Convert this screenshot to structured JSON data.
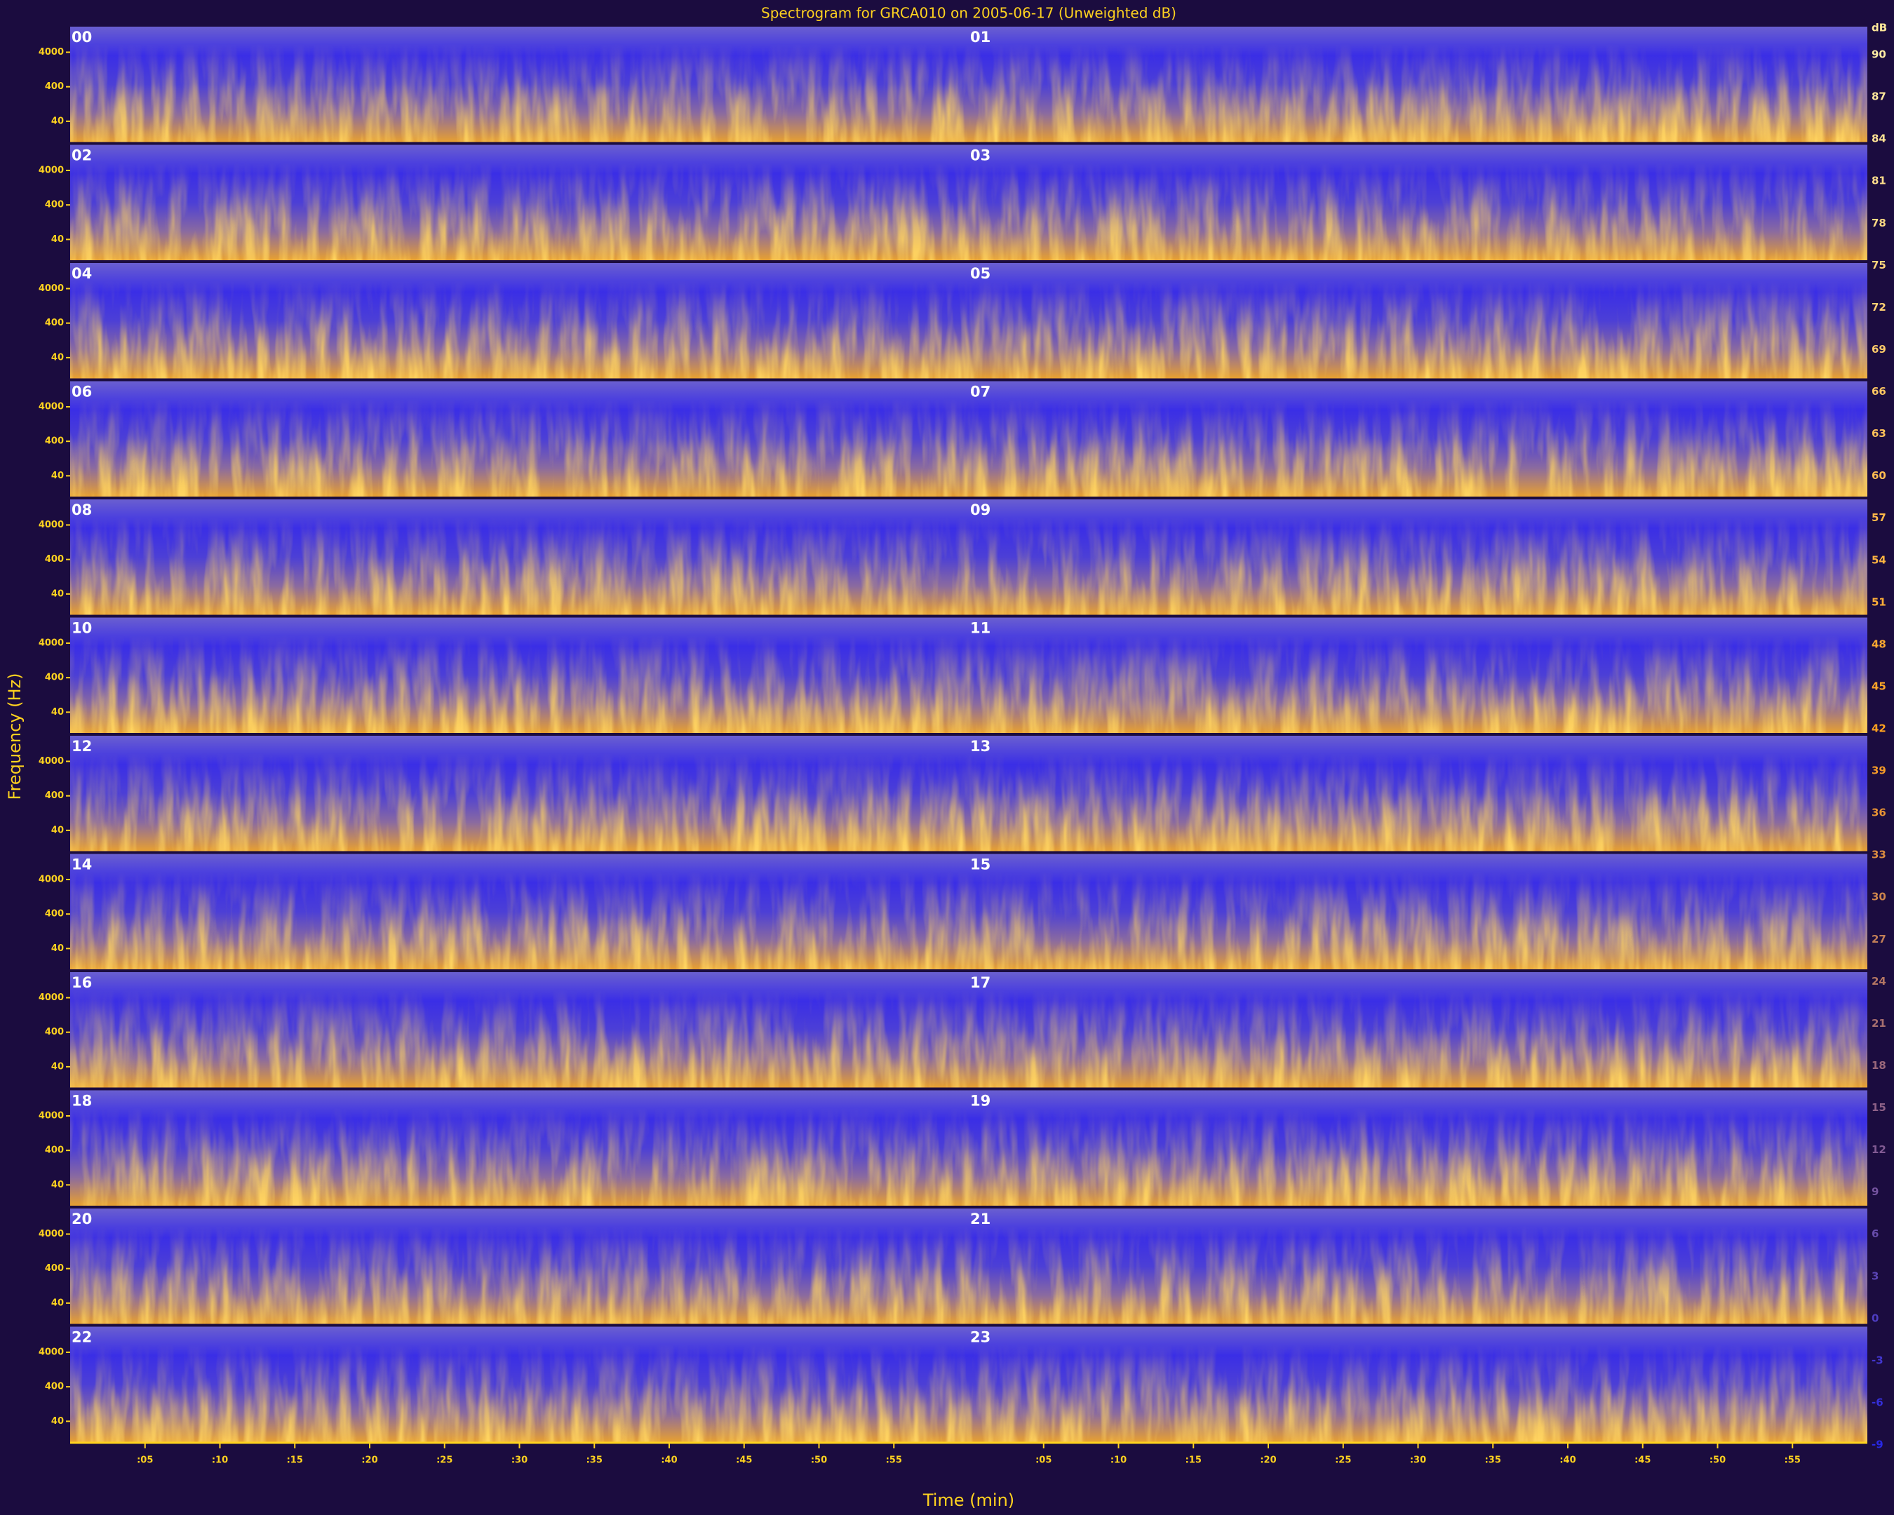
{
  "chart_data": {
    "type": "spectrogram",
    "title": "Spectrogram for GRCA010 on 2005-06-17 (Unweighted dB)",
    "xlabel": "Time (min)",
    "ylabel": "Frequency (Hz)",
    "panels": [
      "00",
      "01",
      "02",
      "03",
      "04",
      "05",
      "06",
      "07",
      "08",
      "09",
      "10",
      "11",
      "12",
      "13",
      "14",
      "15",
      "16",
      "17",
      "18",
      "19",
      "20",
      "21",
      "22",
      "23"
    ],
    "xlim": [
      0,
      60
    ],
    "xticks": [
      {
        "value": 5,
        "label": ":05"
      },
      {
        "value": 10,
        "label": ":10"
      },
      {
        "value": 15,
        "label": ":15"
      },
      {
        "value": 20,
        "label": ":20"
      },
      {
        "value": 25,
        "label": ":25"
      },
      {
        "value": 30,
        "label": ":30"
      },
      {
        "value": 35,
        "label": ":35"
      },
      {
        "value": 40,
        "label": ":40"
      },
      {
        "value": 45,
        "label": ":45"
      },
      {
        "value": 50,
        "label": ":50"
      },
      {
        "value": 55,
        "label": ":55"
      }
    ],
    "ylim": [
      10,
      22050
    ],
    "yscale": "log",
    "yticks": [
      40,
      400,
      4000
    ],
    "colorbar": {
      "label": "dB",
      "lim": [
        -9,
        92
      ],
      "ticks": [
        90,
        87,
        84,
        81,
        78,
        75,
        72,
        69,
        66,
        63,
        60,
        57,
        54,
        51,
        48,
        45,
        42,
        39,
        36,
        33,
        30,
        27,
        24,
        21,
        18,
        15,
        12,
        9,
        6,
        3,
        0,
        -3,
        -6,
        -9
      ]
    }
  }
}
